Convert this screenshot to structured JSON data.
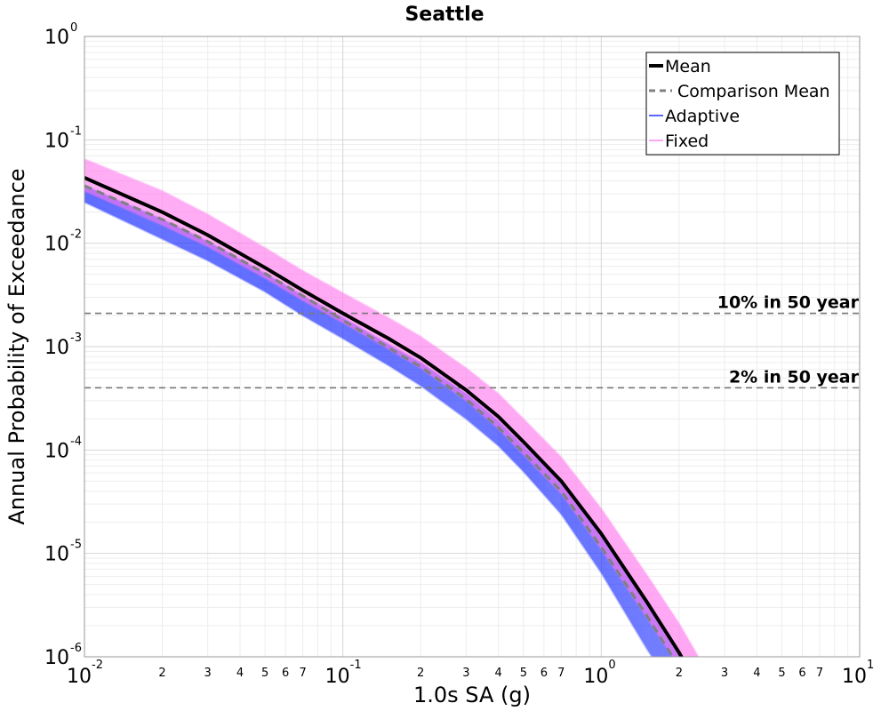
{
  "chart_data": {
    "type": "line",
    "title": "Seattle",
    "xlabel": "1.0s SA (g)",
    "ylabel": "Annual Probability of Exceedance",
    "x_scale": "log",
    "y_scale": "log",
    "xlim": [
      0.01,
      10
    ],
    "ylim": [
      1e-06,
      1
    ],
    "grid": true,
    "legend_position": "top-right",
    "x_major_ticks": [
      {
        "value": 0.01,
        "base": "10",
        "exp": "-2"
      },
      {
        "value": 0.1,
        "base": "10",
        "exp": "-1"
      },
      {
        "value": 1,
        "base": "10",
        "exp": "0"
      },
      {
        "value": 10,
        "base": "10",
        "exp": "1"
      }
    ],
    "y_major_ticks": [
      {
        "value": 1,
        "base": "10",
        "exp": "0"
      },
      {
        "value": 0.1,
        "base": "10",
        "exp": "-1"
      },
      {
        "value": 0.01,
        "base": "10",
        "exp": "-2"
      },
      {
        "value": 0.001,
        "base": "10",
        "exp": "-3"
      },
      {
        "value": 0.0001,
        "base": "10",
        "exp": "-4"
      },
      {
        "value": 1e-05,
        "base": "10",
        "exp": "-5"
      },
      {
        "value": 1e-06,
        "base": "10",
        "exp": "-6"
      }
    ],
    "x_minor_tick_labels": [
      "2",
      "3",
      "4",
      "5",
      "6",
      "7"
    ],
    "reference_lines": [
      {
        "label": "10% in 50 year",
        "y": 0.0021
      },
      {
        "label": "2% in 50 year",
        "y": 0.0004
      }
    ],
    "x": [
      0.01,
      0.02,
      0.03,
      0.05,
      0.07,
      0.1,
      0.15,
      0.2,
      0.3,
      0.4,
      0.5,
      0.7,
      1.0,
      1.5,
      2.0,
      2.5
    ],
    "series": [
      {
        "name": "Mean",
        "style": "solid",
        "color": "#000000",
        "values": [
          0.043,
          0.02,
          0.012,
          0.0058,
          0.0035,
          0.0021,
          0.0012,
          0.00078,
          0.00038,
          0.00021,
          0.00012,
          5e-05,
          1.55e-05,
          3.4e-06,
          1.1e-06,
          4e-07
        ]
      },
      {
        "name": "Comparison Mean",
        "style": "dashed",
        "color": "#808080",
        "values": [
          0.036,
          0.017,
          0.0104,
          0.0051,
          0.0031,
          0.0018,
          0.00098,
          0.00064,
          0.00031,
          0.000165,
          9.5e-05,
          4e-05,
          1.15e-05,
          2.5e-06,
          8e-07,
          3e-07
        ]
      },
      {
        "name": "Adaptive",
        "style": "band",
        "color": "#2233ff",
        "upper": [
          0.036,
          0.017,
          0.0104,
          0.0051,
          0.0031,
          0.0019,
          0.00105,
          0.0007,
          0.00035,
          0.00019,
          0.00011,
          4.8e-05,
          1.45e-05,
          3.2e-06,
          1.1e-06,
          4e-07
        ],
        "lower": [
          0.025,
          0.011,
          0.0068,
          0.0034,
          0.002,
          0.0012,
          0.00066,
          0.00042,
          0.0002,
          0.00011,
          6.2e-05,
          2.4e-05,
          6.5e-06,
          1.2e-06,
          4e-07,
          1.5e-07
        ]
      },
      {
        "name": "Fixed",
        "style": "band",
        "color": "#ff77ee",
        "upper": [
          0.065,
          0.032,
          0.019,
          0.009,
          0.0054,
          0.0033,
          0.0019,
          0.00125,
          0.00062,
          0.00035,
          0.0002,
          8.5e-05,
          2.7e-05,
          6.2e-06,
          2.1e-06,
          8e-07
        ],
        "lower": [
          0.032,
          0.015,
          0.0093,
          0.0046,
          0.0028,
          0.0017,
          0.00095,
          0.00062,
          0.0003,
          0.00016,
          9e-05,
          3.8e-05,
          1.1e-05,
          2.4e-06,
          8e-07,
          3e-07
        ]
      }
    ]
  }
}
